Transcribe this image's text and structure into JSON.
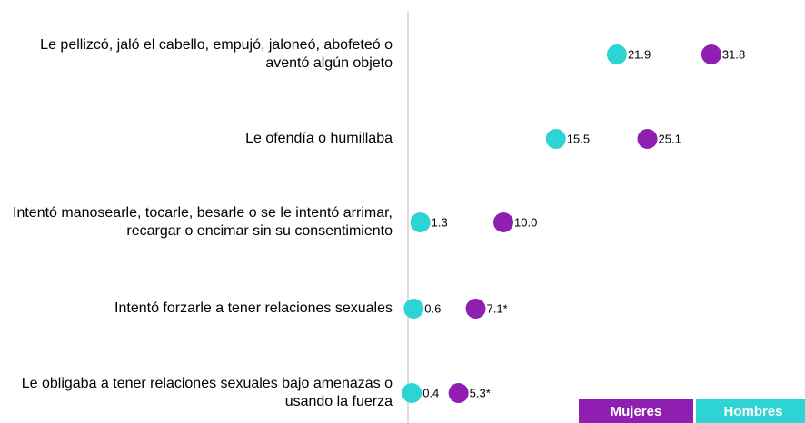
{
  "chart_data": {
    "type": "dot",
    "categories": [
      "Le pellizcó, jaló el cabello, empujó, jaloneó, abofeteó o aventó algún objeto",
      "Le ofendía o humillaba",
      "Intentó manosearle, tocarle, besarle o se le intentó arrimar, recargar o encimar sin su consentimiento",
      "Intentó forzarle a tener relaciones sexuales",
      "Le obligaba a tener relaciones sexuales bajo amenazas o usando la fuerza"
    ],
    "series": [
      {
        "name": "Mujeres",
        "color": "#8e1fb0",
        "values": [
          31.8,
          25.1,
          10.0,
          7.1,
          5.3
        ],
        "value_labels": [
          "31.8",
          "25.1",
          "10.0",
          "7.1*",
          "5.3*"
        ]
      },
      {
        "name": "Hombres",
        "color": "#2ed3d3",
        "values": [
          21.9,
          15.5,
          1.3,
          0.6,
          0.4
        ],
        "value_labels": [
          "21.9",
          "15.5",
          "1.3",
          "0.6",
          "0.4"
        ]
      }
    ]
  }
}
